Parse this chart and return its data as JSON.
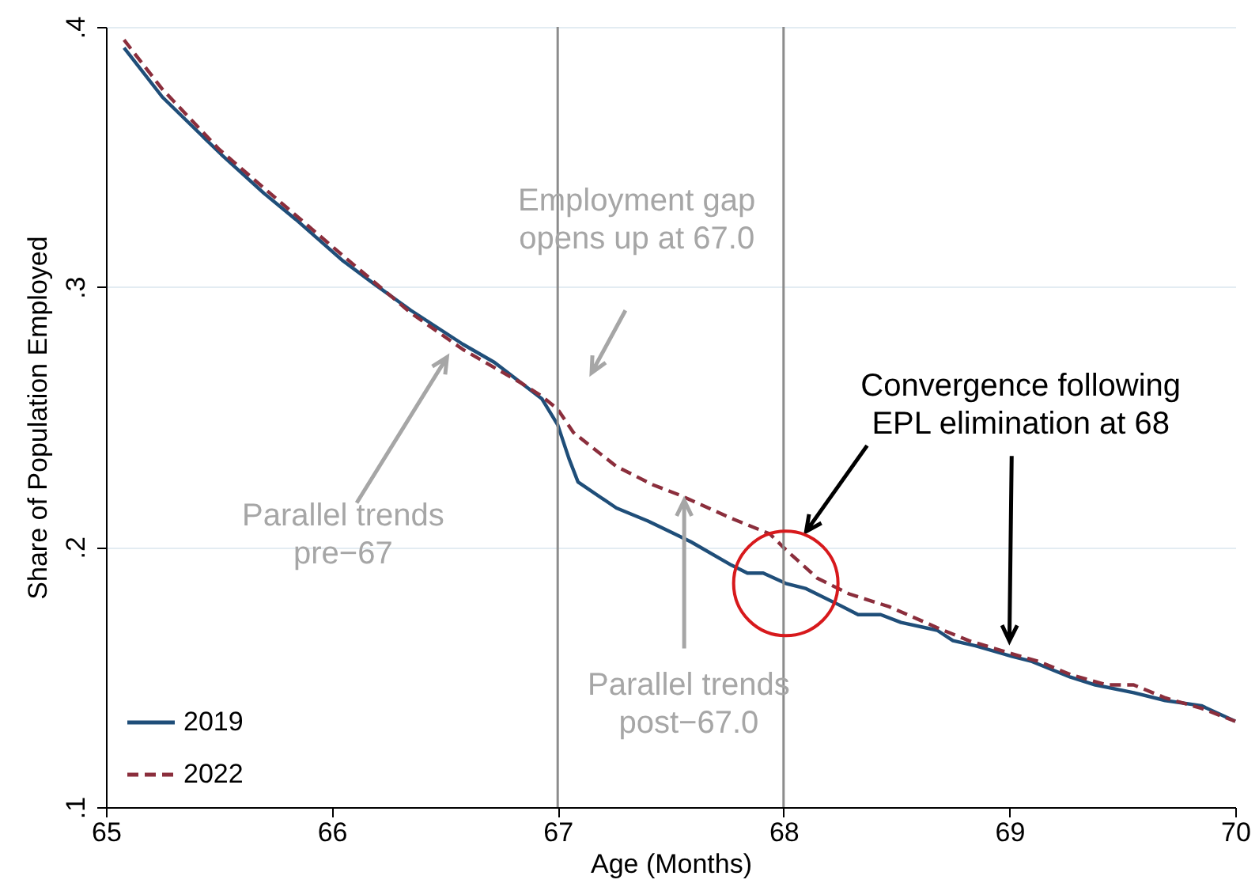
{
  "chart_data": {
    "type": "line",
    "xlabel": "Age (Months)",
    "ylabel": "Share of Population Employed",
    "xlim": [
      65,
      70
    ],
    "xticks": [
      65,
      66,
      67,
      68,
      69,
      70
    ],
    "ylim": [
      0.1,
      0.4
    ],
    "yticks": [
      {
        "value": 0.1,
        "label": ".1"
      },
      {
        "value": 0.2,
        "label": ".2"
      },
      {
        "value": 0.3,
        "label": ".3"
      },
      {
        "value": 0.4,
        "label": ".4"
      }
    ],
    "grid": "y",
    "legend": "bottom left",
    "marker": "none",
    "series": [
      {
        "name": "2019",
        "color": "#1f4e79",
        "line_style": "solid",
        "x": [
          65.08,
          65.25,
          65.51,
          65.7,
          65.84,
          66.05,
          66.19,
          66.35,
          66.58,
          66.72,
          66.84,
          66.93,
          67.0,
          67.05,
          67.09,
          67.26,
          67.4,
          67.52,
          67.59,
          67.77,
          67.84,
          67.91,
          68.01,
          68.1,
          68.24,
          68.33,
          68.43,
          68.52,
          68.68,
          68.75,
          68.85,
          69.01,
          69.1,
          69.27,
          69.38,
          69.55,
          69.69,
          69.85,
          70.0
        ],
        "values": [
          0.392,
          0.373,
          0.351,
          0.336,
          0.326,
          0.31,
          0.301,
          0.291,
          0.278,
          0.271,
          0.263,
          0.257,
          0.247,
          0.234,
          0.225,
          0.215,
          0.21,
          0.205,
          0.202,
          0.193,
          0.19,
          0.19,
          0.186,
          0.184,
          0.178,
          0.174,
          0.174,
          0.171,
          0.168,
          0.164,
          0.162,
          0.158,
          0.156,
          0.15,
          0.147,
          0.144,
          0.141,
          0.139,
          0.133
        ]
      },
      {
        "name": "2022",
        "color": "#8b2e3c",
        "line_style": "dashed",
        "x": [
          65.08,
          65.25,
          65.5,
          65.7,
          66.05,
          66.35,
          66.58,
          66.72,
          66.84,
          66.93,
          67.0,
          67.07,
          67.26,
          67.42,
          67.54,
          67.77,
          67.94,
          68.01,
          68.15,
          68.29,
          68.47,
          68.68,
          68.82,
          69.01,
          69.13,
          69.27,
          69.43,
          69.55,
          69.69,
          69.85,
          70.0
        ],
        "values": [
          0.395,
          0.376,
          0.353,
          0.338,
          0.312,
          0.29,
          0.276,
          0.269,
          0.263,
          0.258,
          0.253,
          0.244,
          0.231,
          0.224,
          0.22,
          0.211,
          0.205,
          0.199,
          0.188,
          0.182,
          0.177,
          0.169,
          0.164,
          0.159,
          0.156,
          0.151,
          0.147,
          0.147,
          0.142,
          0.138,
          0.133
        ]
      }
    ],
    "ref_lines": [
      {
        "axis": "x",
        "value": 67,
        "color": "#8c8c8c"
      },
      {
        "axis": "x",
        "value": 68,
        "color": "#8c8c8c"
      }
    ],
    "annotations": [
      "Employment gap\nopens up at 67.0",
      "Parallel trends\npre−67",
      {
        "text": "Parallel trends\npost−67.0",
        "x": 67.56,
        "y": 0.218
      },
      {
        "text": "Convergence following\nEPL elimination at 68",
        "x": 69,
        "y": 0.159
      }
    ]
  }
}
